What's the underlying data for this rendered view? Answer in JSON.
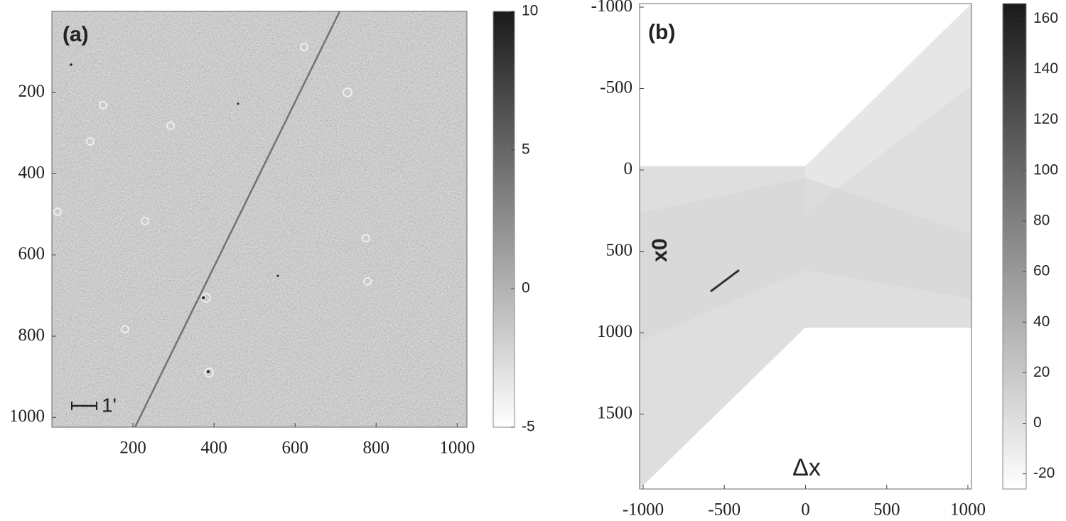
{
  "chart_data": [
    {
      "type": "image",
      "annotation": "(a)",
      "scale_label": "1'",
      "xlim": [
        0,
        1024
      ],
      "ylim": [
        0,
        1024
      ],
      "y_reversed": true,
      "xticks": [
        200,
        400,
        600,
        800,
        1000
      ],
      "yticks": [
        200,
        400,
        600,
        800,
        1000
      ],
      "colorbar": {
        "lim": [
          -5,
          10
        ],
        "ticks": [
          -5,
          0,
          5,
          10
        ]
      }
    },
    {
      "type": "image",
      "annotation": "(b)",
      "xlabel": "Δx",
      "ylabel": "x0",
      "xlim": [
        -1022,
        1022
      ],
      "ylim": [
        -1022,
        1960
      ],
      "y_reversed": true,
      "xticks": [
        -1000,
        -500,
        0,
        500,
        1000
      ],
      "yticks": [
        -1000,
        -500,
        0,
        500,
        1000,
        1500
      ],
      "colorbar": {
        "lim": [
          -26,
          166
        ],
        "ticks": [
          -20,
          0,
          20,
          40,
          60,
          80,
          100,
          120,
          140,
          160
        ]
      }
    }
  ]
}
